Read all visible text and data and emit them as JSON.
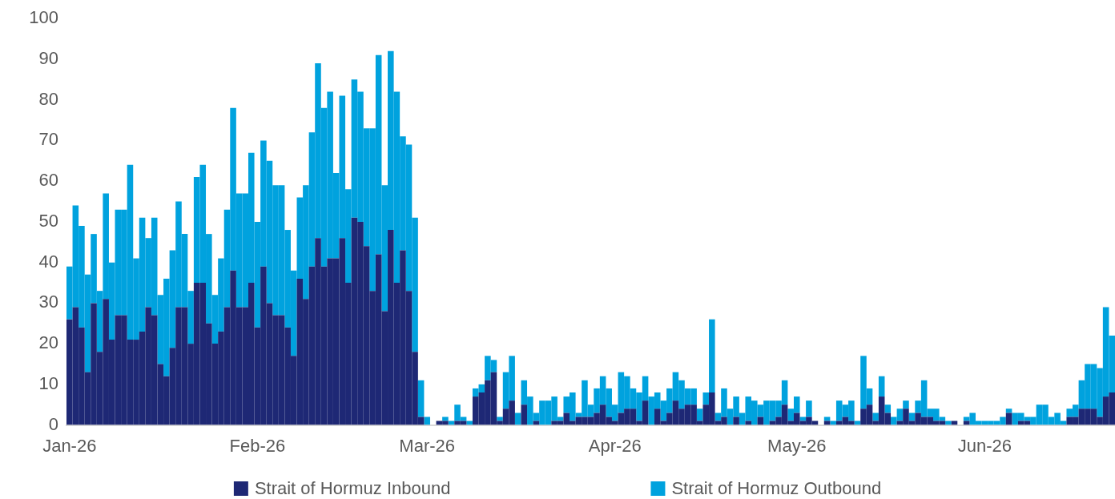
{
  "chart_data": {
    "type": "bar",
    "stacked": true,
    "legend": "bottom",
    "x": [
      "2026-01-01",
      "2026-01-02",
      "2026-01-03",
      "2026-01-04",
      "2026-01-05",
      "2026-01-06",
      "2026-01-07",
      "2026-01-08",
      "2026-01-09",
      "2026-01-10",
      "2026-01-11",
      "2026-01-12",
      "2026-01-13",
      "2026-01-14",
      "2026-01-15",
      "2026-01-16",
      "2026-01-17",
      "2026-01-18",
      "2026-01-19",
      "2026-01-20",
      "2026-01-21",
      "2026-01-22",
      "2026-01-23",
      "2026-01-24",
      "2026-01-25",
      "2026-01-26",
      "2026-01-27",
      "2026-01-28",
      "2026-01-29",
      "2026-01-30",
      "2026-01-31",
      "2026-02-01",
      "2026-02-02",
      "2026-02-03",
      "2026-02-04",
      "2026-02-05",
      "2026-02-06",
      "2026-02-07",
      "2026-02-08",
      "2026-02-09",
      "2026-02-10",
      "2026-02-11",
      "2026-02-12",
      "2026-02-13",
      "2026-02-14",
      "2026-02-15",
      "2026-02-16",
      "2026-02-17",
      "2026-02-18",
      "2026-02-19",
      "2026-02-20",
      "2026-02-21",
      "2026-02-22",
      "2026-02-23",
      "2026-02-24",
      "2026-02-25",
      "2026-02-26",
      "2026-02-27",
      "2026-02-28",
      "2026-03-01",
      "2026-03-02",
      "2026-03-03",
      "2026-03-04",
      "2026-03-05",
      "2026-03-06",
      "2026-03-07",
      "2026-03-08",
      "2026-03-09",
      "2026-03-10",
      "2026-03-11",
      "2026-03-12",
      "2026-03-13",
      "2026-03-14",
      "2026-03-15",
      "2026-03-16",
      "2026-03-17",
      "2026-03-18",
      "2026-03-19",
      "2026-03-20",
      "2026-03-21",
      "2026-03-22",
      "2026-03-23",
      "2026-03-24",
      "2026-03-25",
      "2026-03-26",
      "2026-03-27",
      "2026-03-28",
      "2026-03-29",
      "2026-03-30",
      "2026-03-31",
      "2026-04-01",
      "2026-04-02",
      "2026-04-03",
      "2026-04-04",
      "2026-04-05",
      "2026-04-06",
      "2026-04-07",
      "2026-04-08",
      "2026-04-09",
      "2026-04-10",
      "2026-04-11",
      "2026-04-12",
      "2026-04-13",
      "2026-04-14",
      "2026-04-15",
      "2026-04-16",
      "2026-04-17",
      "2026-04-18",
      "2026-04-19",
      "2026-04-20",
      "2026-04-21",
      "2026-04-22",
      "2026-04-23",
      "2026-04-24",
      "2026-04-25",
      "2026-04-26",
      "2026-04-27",
      "2026-04-28",
      "2026-04-29",
      "2026-04-30",
      "2026-05-01",
      "2026-05-02",
      "2026-05-03",
      "2026-05-04",
      "2026-05-05",
      "2026-05-06",
      "2026-05-07",
      "2026-05-08",
      "2026-05-09",
      "2026-05-10",
      "2026-05-11",
      "2026-05-12",
      "2026-05-13",
      "2026-05-14",
      "2026-05-15",
      "2026-05-16",
      "2026-05-17",
      "2026-05-18",
      "2026-05-19",
      "2026-05-20",
      "2026-05-21",
      "2026-05-22",
      "2026-05-23",
      "2026-05-24",
      "2026-05-25",
      "2026-05-26",
      "2026-05-27",
      "2026-05-28",
      "2026-05-29",
      "2026-05-30",
      "2026-05-31",
      "2026-06-01",
      "2026-06-02",
      "2026-06-03",
      "2026-06-04",
      "2026-06-05",
      "2026-06-06",
      "2026-06-07",
      "2026-06-08",
      "2026-06-09",
      "2026-06-10",
      "2026-06-11",
      "2026-06-12",
      "2026-06-13",
      "2026-06-14",
      "2026-06-15",
      "2026-06-16",
      "2026-06-17",
      "2026-06-18",
      "2026-06-19",
      "2026-06-20",
      "2026-06-21",
      "2026-06-22"
    ],
    "xlim": [
      "2025-12-31T12:00",
      "2026-06-22T12:00"
    ],
    "xticks": [
      {
        "value": "2026-01-01",
        "label": "Jan-26"
      },
      {
        "value": "2026-02-01",
        "label": "Feb-26"
      },
      {
        "value": "2026-03-01",
        "label": "Mar-26"
      },
      {
        "value": "2026-04-01",
        "label": "Apr-26"
      },
      {
        "value": "2026-05-01",
        "label": "May-26"
      },
      {
        "value": "2026-06-01",
        "label": "Jun-26"
      }
    ],
    "ylim": [
      0,
      100
    ],
    "yticks": [
      0,
      10,
      20,
      30,
      40,
      50,
      60,
      70,
      80,
      90,
      100
    ],
    "series": [
      {
        "name": "Strait of Hormuz Inbound",
        "color": "#1e2875",
        "values": [
          26,
          29,
          24,
          13,
          30,
          18,
          31,
          21,
          27,
          27,
          21,
          21,
          23,
          29,
          27,
          15,
          12,
          19,
          29,
          29,
          20,
          35,
          35,
          25,
          20,
          23,
          29,
          38,
          29,
          29,
          35,
          24,
          39,
          30,
          27,
          27,
          24,
          17,
          36,
          31,
          39,
          46,
          39,
          41,
          41,
          46,
          35,
          51,
          50,
          44,
          33,
          42,
          28,
          48,
          35,
          43,
          33,
          18,
          2,
          0,
          0,
          1,
          1,
          0,
          1,
          1,
          0,
          7,
          8,
          11,
          13,
          1,
          4,
          6,
          0,
          5,
          0,
          1,
          0,
          0,
          1,
          1,
          3,
          1,
          2,
          2,
          2,
          3,
          5,
          2,
          1,
          3,
          4,
          4,
          1,
          6,
          0,
          4,
          1,
          3,
          6,
          4,
          5,
          5,
          1,
          5,
          8,
          1,
          2,
          0,
          2,
          0,
          1,
          0,
          2,
          0,
          1,
          2,
          5,
          1,
          3,
          1,
          2,
          1,
          0,
          1,
          0,
          1,
          2,
          1,
          0,
          4,
          5,
          1,
          7,
          3,
          0,
          1,
          4,
          1,
          3,
          2,
          2,
          1,
          1,
          0,
          1,
          0,
          1,
          0,
          0,
          0,
          0,
          0,
          0,
          3,
          0,
          1,
          1,
          0,
          0,
          0,
          0,
          0,
          0,
          2,
          2,
          4,
          4,
          4,
          2,
          7,
          8
        ]
      },
      {
        "name": "Strait of Hormuz Outbound",
        "color": "#00a2de",
        "values": [
          13,
          25,
          25,
          24,
          17,
          15,
          26,
          19,
          26,
          26,
          43,
          20,
          28,
          17,
          24,
          17,
          24,
          24,
          26,
          18,
          13,
          26,
          29,
          22,
          12,
          18,
          24,
          40,
          28,
          28,
          32,
          26,
          31,
          35,
          32,
          32,
          24,
          21,
          20,
          28,
          33,
          43,
          39,
          41,
          21,
          35,
          23,
          34,
          32,
          29,
          40,
          49,
          31,
          44,
          47,
          28,
          36,
          33,
          9,
          2,
          0,
          0,
          1,
          1,
          4,
          1,
          1,
          2,
          2,
          6,
          3,
          1,
          9,
          11,
          3,
          6,
          7,
          2,
          6,
          6,
          6,
          1,
          4,
          7,
          1,
          9,
          3,
          6,
          7,
          7,
          4,
          10,
          8,
          5,
          7,
          6,
          7,
          4,
          5,
          6,
          7,
          7,
          4,
          4,
          3,
          3,
          18,
          2,
          7,
          4,
          5,
          3,
          6,
          6,
          3,
          6,
          5,
          4,
          6,
          3,
          4,
          1,
          4,
          0,
          0,
          1,
          1,
          5,
          3,
          5,
          1,
          13,
          4,
          2,
          5,
          2,
          2,
          3,
          2,
          2,
          3,
          9,
          2,
          3,
          1,
          1,
          0,
          0,
          1,
          3,
          1,
          1,
          1,
          1,
          2,
          1,
          3,
          2,
          1,
          2,
          5,
          5,
          2,
          3,
          1,
          2,
          3,
          7,
          11,
          11,
          12,
          22,
          14
        ]
      }
    ]
  }
}
